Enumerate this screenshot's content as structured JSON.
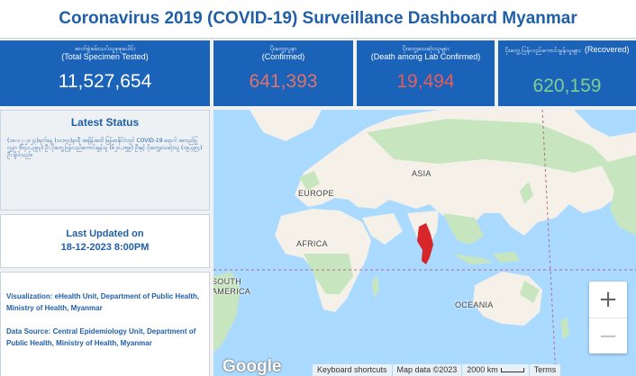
{
  "title": "Coronavirus 2019 (COVID-19) Surveillance Dashboard Myanmar",
  "stats": [
    {
      "label_my": "ဓာတ်ခွဲစမ်းသပ်သူစုစုပေါင်း",
      "label_en": "(Total Specimen Tested)",
      "value": "11,527,654",
      "color": "#ffffff"
    },
    {
      "label_my": "ပိုးတွေ့လူနာ",
      "label_en": "(Confirmed)",
      "value": "641,393",
      "color": "#e0736a"
    },
    {
      "label_my": "ပိုးတွေ့သေဆုံးသူများ",
      "label_en": "(Death among Lab Confirmed)",
      "value": "19,494",
      "color": "#e35d5d"
    },
    {
      "label_my": "ပိုးတွေ့ ပြန်လည်ကောင်းမွန်သူများ",
      "label_en": "(Recovered)",
      "value": "620,159",
      "color": "#7fcf8f"
    }
  ],
  "latest_status": {
    "heading": "Latest Status",
    "body": "(၁၈-၁၂-၂၀၂၃)ရက်နေ့ (၁၀း၀၀)နာရီ အချိန်အထိ မြန်မာနိုင်ငံတွင် COVID-19 ရောဂါ အတည်ပြုလူနာ (၆၄၁,၃၉၃) ဦး ပိုးတွေ့ပြန်လည်ကောင်းမွန်သူ (၆၂၀,၁၅၉) ဦးနှင့် ပိုးတွေ့သေဆုံးသူ (၁၉,၄၉၄) ဦး ရှိပါသည်။"
  },
  "last_updated": {
    "label": "Last Updated on",
    "value": "18-12-2023 8:00PM"
  },
  "credits": {
    "visualization": "Visualization: eHealth Unit, Department of Public Health, Ministry of Health, Myanmar",
    "data_source": "Data Source: Central Epidemiology Unit, Department of Public Health, Ministry of Health, Myanmar"
  },
  "map": {
    "labels": {
      "asia": "ASIA",
      "europe": "EUROPE",
      "africa": "AFRICA",
      "south_america": "SOUTH\nAMERICA",
      "oceania": "OCEANIA"
    },
    "zoom_in": "+",
    "zoom_out": "−",
    "logo": "Google",
    "keyboard_shortcuts": "Keyboard shortcuts",
    "map_data": "Map data ©2023",
    "scale": "2000 km",
    "terms": "Terms",
    "colors": {
      "water": "#aadaff",
      "land": "#f5f1e8",
      "forest": "#c7e6bf",
      "highlight": "#d7262a"
    }
  }
}
